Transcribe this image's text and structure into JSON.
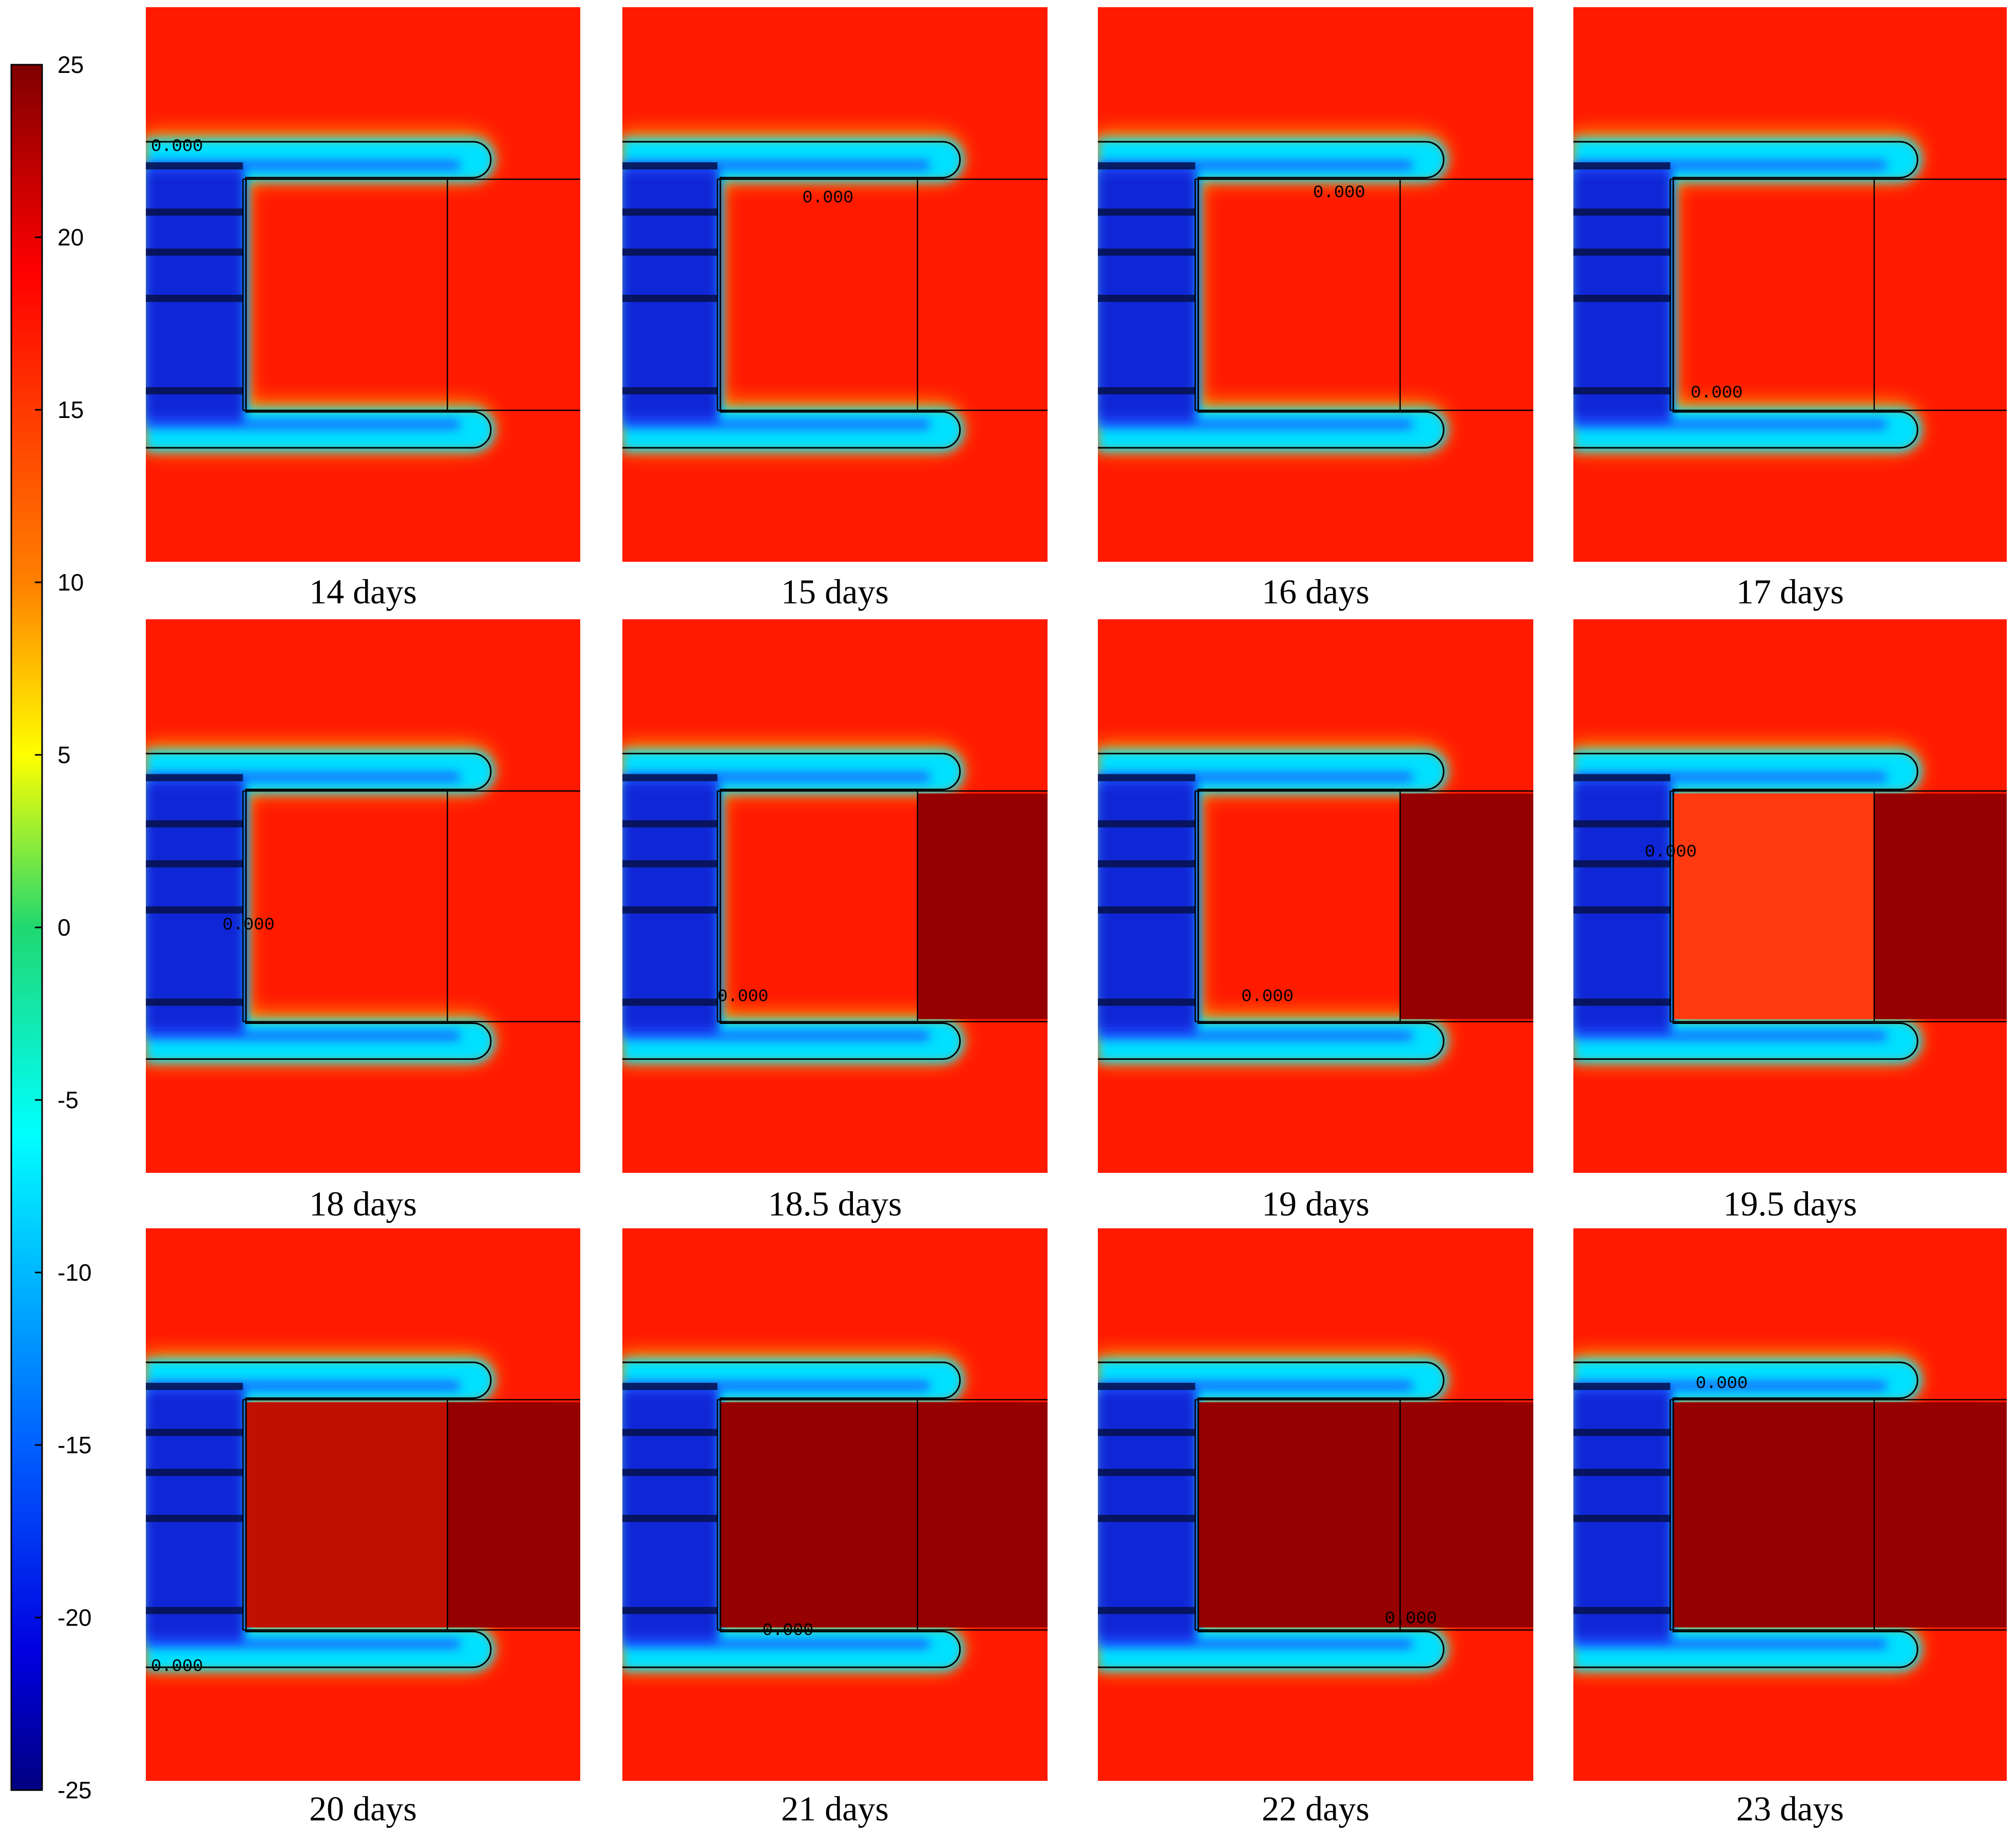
{
  "chart_data": {
    "type": "heatmap",
    "description_of_grid": "12 simulation snapshots arranged 3 rows x 4 columns with a shared vertical color bar",
    "colorbar": {
      "min": -25,
      "max": 25,
      "ticks": [
        25,
        20,
        15,
        10,
        5,
        0,
        -5,
        -10,
        -15,
        -20,
        -25
      ],
      "colormap": "rainbow"
    },
    "contour_level_label": "0.000",
    "panels": [
      {
        "caption": "14 days",
        "interior_warm": false,
        "gap_filled": false,
        "warm_interior_tint": "#ff2200"
      },
      {
        "caption": "15 days",
        "interior_warm": false,
        "gap_filled": false,
        "warm_interior_tint": "#ff2200"
      },
      {
        "caption": "16 days",
        "interior_warm": false,
        "gap_filled": false,
        "warm_interior_tint": "#ff2200"
      },
      {
        "caption": "17 days",
        "interior_warm": false,
        "gap_filled": false,
        "warm_interior_tint": "#ff2200"
      },
      {
        "caption": "18 days",
        "interior_warm": false,
        "gap_filled": false,
        "warm_interior_tint": "#ff2200"
      },
      {
        "caption": "18.5 days",
        "interior_warm": false,
        "gap_filled": true,
        "warm_interior_tint": "#ff2200"
      },
      {
        "caption": "19 days",
        "interior_warm": false,
        "gap_filled": true,
        "warm_interior_tint": "#ff2200"
      },
      {
        "caption": "19.5 days",
        "interior_warm": true,
        "gap_filled": true,
        "warm_interior_tint": "#ff3a10"
      },
      {
        "caption": "20 days",
        "interior_warm": true,
        "gap_filled": true,
        "warm_interior_tint": "#c01004"
      },
      {
        "caption": "21 days",
        "interior_warm": true,
        "gap_filled": true,
        "warm_interior_tint": "#950000"
      },
      {
        "caption": "22 days",
        "interior_warm": true,
        "gap_filled": true,
        "warm_interior_tint": "#950000"
      },
      {
        "caption": "23 days",
        "interior_warm": true,
        "gap_filled": true,
        "warm_interior_tint": "#950000"
      }
    ],
    "colors": {
      "ambient": "#ff1a00",
      "frozen_core": "#0a1acc",
      "frozen_mid": "#1f4fff",
      "freeze_line": "#000000",
      "thawed_fill": "#950000"
    }
  }
}
